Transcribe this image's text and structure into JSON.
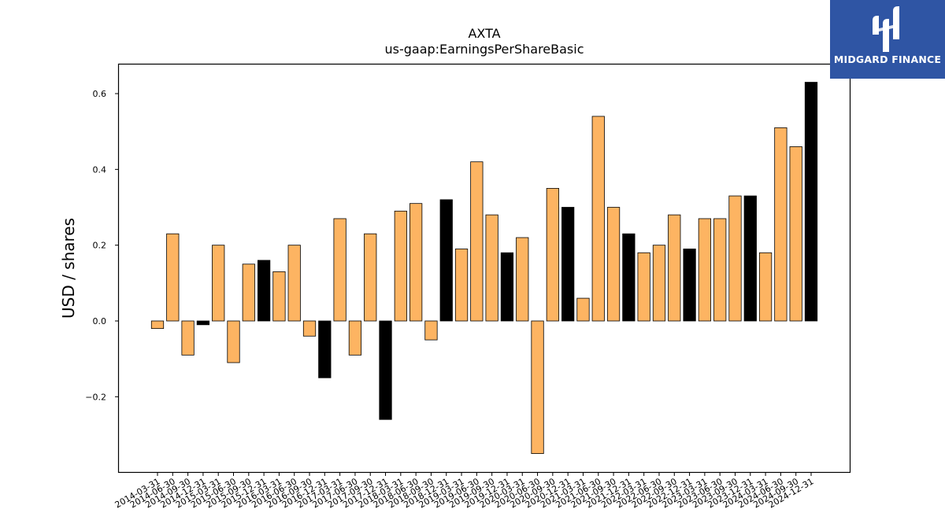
{
  "chart_data": {
    "type": "bar",
    "title": "AXTA",
    "subtitle": "us-gaap:EarningsPerShareBasic",
    "ylabel": "USD / shares",
    "xlabel": "",
    "ylim": [
      -0.4,
      0.68
    ],
    "yticks": [
      -0.2,
      0.0,
      0.2,
      0.4,
      0.6
    ],
    "ytick_labels": [
      "−0.2",
      "0.0",
      "0.2",
      "0.4",
      "0.6"
    ],
    "grid": false,
    "colors": {
      "quarter": "#FDB462",
      "fiscal_year_end": "#000000",
      "edge": "#000000"
    },
    "categories": [
      "2014-03-31",
      "2014-06-30",
      "2014-09-30",
      "2014-12-31",
      "2015-03-31",
      "2015-06-30",
      "2015-09-30",
      "2015-12-31",
      "2016-03-31",
      "2016-06-30",
      "2016-09-30",
      "2016-12-31",
      "2017-03-31",
      "2017-06-30",
      "2017-09-30",
      "2017-12-31",
      "2018-03-31",
      "2018-06-30",
      "2018-09-30",
      "2018-12-31",
      "2019-03-31",
      "2019-06-30",
      "2019-09-30",
      "2019-12-31",
      "2020-03-31",
      "2020-06-30",
      "2020-09-30",
      "2020-12-31",
      "2021-03-31",
      "2021-06-30",
      "2021-09-30",
      "2021-12-31",
      "2022-03-31",
      "2022-06-30",
      "2022-09-30",
      "2022-12-31",
      "2023-03-31",
      "2023-06-30",
      "2023-09-30",
      "2023-12-31",
      "2024-03-31",
      "2024-06-30",
      "2024-09-30",
      "2024-12-31"
    ],
    "values": [
      -0.02,
      0.23,
      -0.09,
      -0.01,
      0.2,
      -0.11,
      0.15,
      0.16,
      0.13,
      0.2,
      -0.04,
      -0.15,
      0.27,
      -0.09,
      0.23,
      -0.26,
      0.29,
      0.31,
      -0.05,
      0.32,
      0.19,
      0.42,
      0.28,
      0.18,
      0.22,
      -0.35,
      0.35,
      0.3,
      0.06,
      0.54,
      0.3,
      0.23,
      0.18,
      0.2,
      0.28,
      0.19,
      0.27,
      0.27,
      0.33,
      0.33,
      0.18,
      0.51,
      0.46,
      0.63
    ],
    "fiscal_year_end": [
      false,
      false,
      false,
      true,
      false,
      false,
      false,
      true,
      false,
      false,
      false,
      true,
      false,
      false,
      false,
      true,
      false,
      false,
      false,
      true,
      false,
      false,
      false,
      true,
      false,
      false,
      false,
      true,
      false,
      false,
      false,
      true,
      false,
      false,
      false,
      true,
      false,
      false,
      false,
      true,
      false,
      false,
      false,
      true
    ]
  },
  "logo": {
    "text": "MIDGARD FINANCE",
    "bg_color": "#2f55a4"
  }
}
